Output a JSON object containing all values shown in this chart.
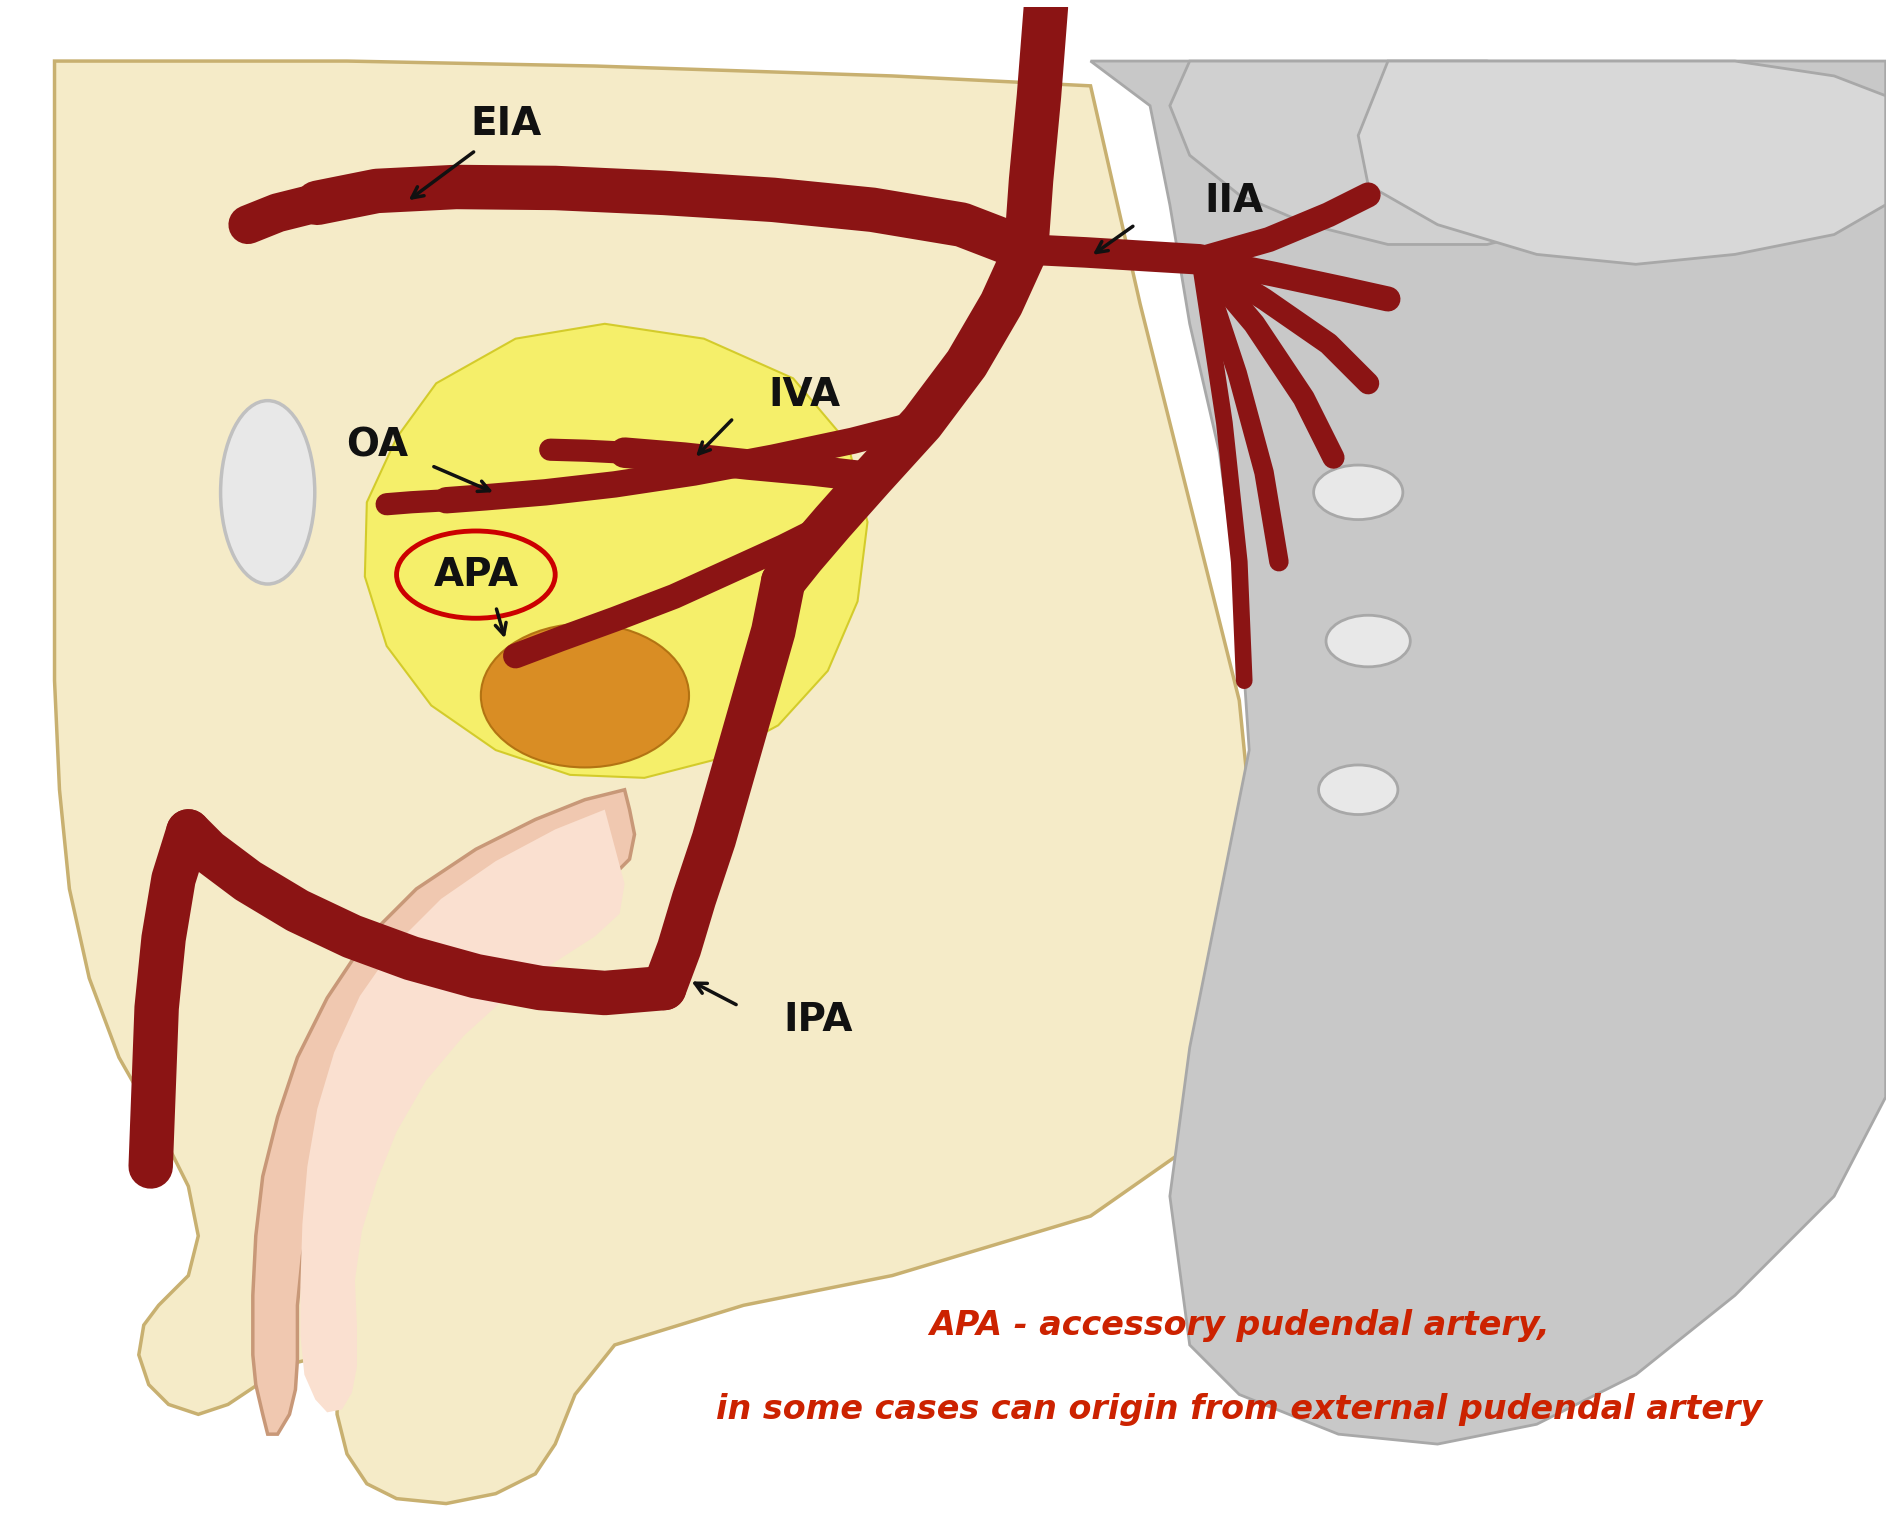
{
  "bg_color": "#FFFFFF",
  "body_bg": "#F5EBC8",
  "body_stroke": "#C8B070",
  "artery_color": "#8B1414",
  "gray_bone": "#C8C8C8",
  "gray_bone_stroke": "#A8A8A8",
  "yellow_bright": "#F5F060",
  "yellow_orange": "#D88C10",
  "pink_outer": "#F0C8B0",
  "pink_inner": "#F8DCCa",
  "text_color": "#111111",
  "red_text": "#CC2200",
  "label_EIA": "EIA",
  "label_IIA": "IIA",
  "label_IVA": "IVA",
  "label_OA": "OA",
  "label_APA": "APA",
  "label_IPA": "IPA",
  "caption_line1": "APA - accessory pudendal artery,",
  "caption_line2": "in some cases can origin from external pudendal artery",
  "font_labels": 28,
  "font_caption": 24
}
